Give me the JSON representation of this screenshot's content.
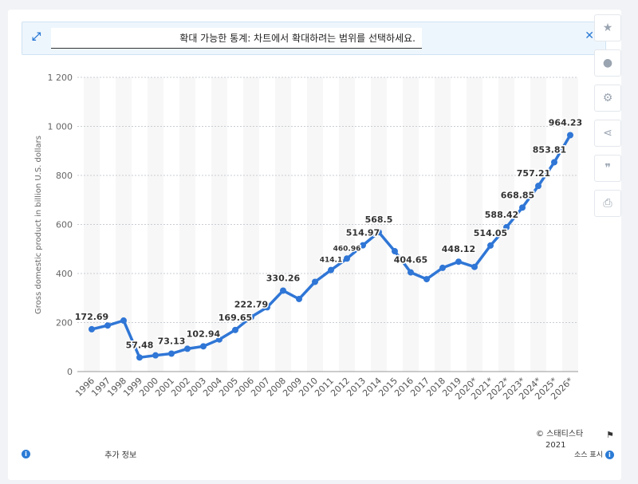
{
  "zoom_banner": {
    "message": "확대 가능한 통계: 차트에서 확대하려는 범위를 선택하세요.",
    "expand_icon": "expand-icon",
    "close_icon": "close-icon"
  },
  "side_tools": [
    {
      "name": "star-icon",
      "glyph": "★"
    },
    {
      "name": "bell-icon",
      "glyph": "🔔"
    },
    {
      "name": "gear-icon",
      "glyph": "⚙"
    },
    {
      "name": "share-icon",
      "glyph": "⋖"
    },
    {
      "name": "quote-icon",
      "glyph": "❞"
    },
    {
      "name": "print-icon",
      "glyph": "⎙"
    }
  ],
  "footer": {
    "more_info": "추가 정보",
    "copyright": "© 스태티스타",
    "year": "2021",
    "show_source": "소스 표시"
  },
  "colors": {
    "line": "#2f76d6",
    "grid": "#c8cdd3",
    "band": "#f7f7f7"
  },
  "chart_data": {
    "type": "line",
    "title": "",
    "xlabel": "",
    "ylabel": "Gross domestic product in billion U.S. dollars",
    "ylim": [
      0,
      1200
    ],
    "yticks": [
      0,
      200,
      400,
      600,
      800,
      1000,
      1200
    ],
    "ytick_labels": [
      "0",
      "200",
      "400",
      "600",
      "800",
      "1 000",
      "1 200"
    ],
    "grid": true,
    "categories": [
      "1996",
      "1997",
      "1998",
      "1999",
      "2000",
      "2001",
      "2002",
      "2003",
      "2004",
      "2005",
      "2006",
      "2007",
      "2008",
      "2009",
      "2010",
      "2011",
      "2012",
      "2013",
      "2014",
      "2015",
      "2016",
      "2017",
      "2018",
      "2019",
      "2020*",
      "2021*",
      "2022*",
      "2023*",
      "2024*",
      "2025*",
      "2026*"
    ],
    "values": [
      172.69,
      188,
      208,
      57.48,
      66.1,
      73.13,
      93,
      102.94,
      131,
      169.65,
      222.79,
      262,
      330.26,
      296,
      366,
      414.1,
      460.96,
      514.97,
      568.5,
      491,
      404.65,
      377,
      423,
      448.12,
      427,
      514.05,
      588.42,
      668.85,
      757.21,
      853.81,
      964.23
    ],
    "data_labels": {
      "0": "172.69",
      "3": "57.48",
      "5": "73.13",
      "7": "102.94",
      "9": "169.65",
      "10": "222.79",
      "12": "330.26",
      "15": "414.1",
      "16": "460.96",
      "17": "514.97",
      "18": "568.5",
      "20": "404.65",
      "23": "448.12",
      "25": "514.05",
      "26": "588.42",
      "27": "668.85",
      "28": "757.21",
      "29": "853.81",
      "30": "964.23"
    }
  }
}
